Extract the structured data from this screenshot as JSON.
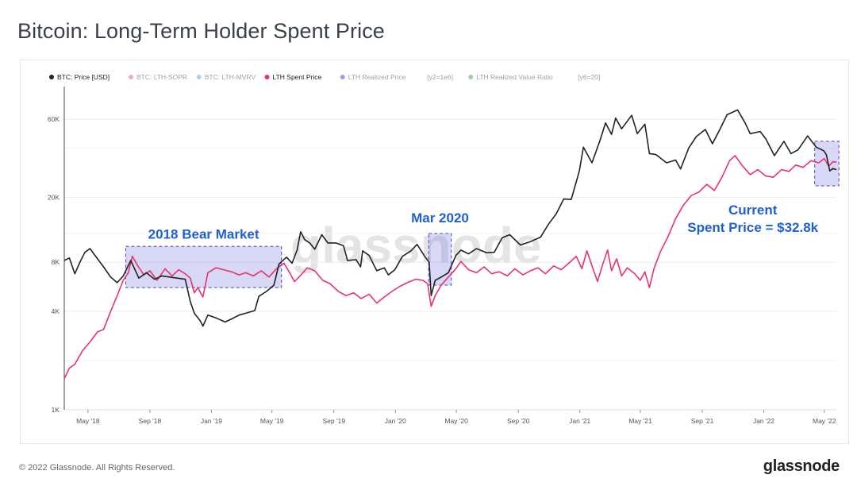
{
  "title": "Bitcoin: Long-Term Holder Spent Price",
  "footer": "© 2022 Glassnode. All Rights Reserved.",
  "brand": "glassnode",
  "watermark": "glassnode",
  "legend": [
    {
      "label": "BTC: Price [USD]",
      "color": "#222222",
      "active": true
    },
    {
      "label": "BTC: LTH-SOPR",
      "color": "#e6417c",
      "active": false
    },
    {
      "label": "BTC: LTH-MVRV",
      "color": "#3ea0e0",
      "active": false
    },
    {
      "label": "LTH Spent Price",
      "color": "#e8336f",
      "active": true
    },
    {
      "label": "LTH Realized Price",
      "color": "#1d2bd0",
      "active": false
    },
    {
      "label": "[y2=1e6]",
      "color": null,
      "active": false
    },
    {
      "label": "LTH Realized Value Ratio",
      "color": "#2e9e3a",
      "active": false
    },
    {
      "label": "[y6=20]",
      "color": null,
      "active": false
    }
  ],
  "chart_data": {
    "type": "line",
    "title": "Bitcoin: Long-Term Holder Spent Price",
    "y_scale": "log",
    "ylim": [
      1000,
      90000
    ],
    "y_ticks": [
      {
        "value": 1000,
        "label": "1K"
      },
      {
        "value": 4000,
        "label": "4K"
      },
      {
        "value": 8000,
        "label": "8K"
      },
      {
        "value": 20000,
        "label": "20K"
      },
      {
        "value": 60000,
        "label": "60K"
      }
    ],
    "x_range": [
      "2018-03-15",
      "2022-05-25"
    ],
    "x_ticks": [
      {
        "date": "2018-05-01",
        "label": "May '18"
      },
      {
        "date": "2018-09-01",
        "label": "Sep '18"
      },
      {
        "date": "2019-01-01",
        "label": "Jan '19"
      },
      {
        "date": "2019-05-01",
        "label": "May '19"
      },
      {
        "date": "2019-09-01",
        "label": "Sep '19"
      },
      {
        "date": "2020-01-01",
        "label": "Jan '20"
      },
      {
        "date": "2020-05-01",
        "label": "May '20"
      },
      {
        "date": "2020-09-01",
        "label": "Sep '20"
      },
      {
        "date": "2021-01-01",
        "label": "Jan '21"
      },
      {
        "date": "2021-05-01",
        "label": "May '21"
      },
      {
        "date": "2021-09-01",
        "label": "Sep '21"
      },
      {
        "date": "2022-01-01",
        "label": "Jan '22"
      },
      {
        "date": "2022-05-01",
        "label": "May '22"
      }
    ],
    "series": [
      {
        "name": "BTC: Price [USD]",
        "color": "#222222",
        "points": [
          [
            "2018-03-15",
            8200
          ],
          [
            "2018-03-25",
            8500
          ],
          [
            "2018-04-05",
            6800
          ],
          [
            "2018-04-15",
            8000
          ],
          [
            "2018-04-25",
            9200
          ],
          [
            "2018-05-05",
            9700
          ],
          [
            "2018-05-20",
            8400
          ],
          [
            "2018-06-01",
            7500
          ],
          [
            "2018-06-15",
            6500
          ],
          [
            "2018-06-28",
            6000
          ],
          [
            "2018-07-10",
            6600
          ],
          [
            "2018-07-25",
            8200
          ],
          [
            "2018-08-10",
            6400
          ],
          [
            "2018-08-25",
            6900
          ],
          [
            "2018-09-10",
            6300
          ],
          [
            "2018-09-25",
            6600
          ],
          [
            "2018-10-10",
            6500
          ],
          [
            "2018-10-25",
            6400
          ],
          [
            "2018-11-10",
            6300
          ],
          [
            "2018-11-20",
            4600
          ],
          [
            "2018-11-28",
            3900
          ],
          [
            "2018-12-10",
            3500
          ],
          [
            "2018-12-15",
            3250
          ],
          [
            "2018-12-25",
            3800
          ],
          [
            "2019-01-10",
            3650
          ],
          [
            "2019-01-28",
            3450
          ],
          [
            "2019-02-10",
            3600
          ],
          [
            "2019-02-25",
            3800
          ],
          [
            "2019-03-10",
            3900
          ],
          [
            "2019-03-28",
            4050
          ],
          [
            "2019-04-05",
            4950
          ],
          [
            "2019-04-20",
            5300
          ],
          [
            "2019-05-05",
            5800
          ],
          [
            "2019-05-15",
            7800
          ],
          [
            "2019-05-30",
            8600
          ],
          [
            "2019-06-10",
            7900
          ],
          [
            "2019-06-20",
            9500
          ],
          [
            "2019-06-27",
            12300
          ],
          [
            "2019-07-05",
            11000
          ],
          [
            "2019-07-15",
            10500
          ],
          [
            "2019-07-25",
            9600
          ],
          [
            "2019-08-08",
            11800
          ],
          [
            "2019-08-20",
            10500
          ],
          [
            "2019-09-05",
            10500
          ],
          [
            "2019-09-20",
            10100
          ],
          [
            "2019-09-28",
            8200
          ],
          [
            "2019-10-15",
            8300
          ],
          [
            "2019-10-24",
            7500
          ],
          [
            "2019-10-28",
            9400
          ],
          [
            "2019-11-10",
            8800
          ],
          [
            "2019-11-25",
            7100
          ],
          [
            "2019-12-10",
            7400
          ],
          [
            "2019-12-18",
            6700
          ],
          [
            "2019-12-31",
            7200
          ],
          [
            "2020-01-15",
            8700
          ],
          [
            "2020-02-01",
            9400
          ],
          [
            "2020-02-13",
            10300
          ],
          [
            "2020-02-28",
            8700
          ],
          [
            "2020-03-08",
            8000
          ],
          [
            "2020-03-12",
            5000
          ],
          [
            "2020-03-20",
            6200
          ],
          [
            "2020-04-01",
            6500
          ],
          [
            "2020-04-15",
            6900
          ],
          [
            "2020-04-30",
            8800
          ],
          [
            "2020-05-10",
            9500
          ],
          [
            "2020-05-25",
            9000
          ],
          [
            "2020-06-10",
            9700
          ],
          [
            "2020-06-30",
            9150
          ],
          [
            "2020-07-15",
            9200
          ],
          [
            "2020-07-31",
            11300
          ],
          [
            "2020-08-15",
            11800
          ],
          [
            "2020-09-05",
            10200
          ],
          [
            "2020-09-25",
            10700
          ],
          [
            "2020-10-15",
            11400
          ],
          [
            "2020-10-31",
            13700
          ],
          [
            "2020-11-15",
            15800
          ],
          [
            "2020-11-30",
            19500
          ],
          [
            "2020-12-15",
            19400
          ],
          [
            "2020-12-31",
            29000
          ],
          [
            "2021-01-08",
            40500
          ],
          [
            "2021-01-25",
            32500
          ],
          [
            "2021-02-10",
            44500
          ],
          [
            "2021-02-21",
            57000
          ],
          [
            "2021-03-05",
            48500
          ],
          [
            "2021-03-13",
            61000
          ],
          [
            "2021-03-25",
            52500
          ],
          [
            "2021-04-14",
            63500
          ],
          [
            "2021-04-25",
            49000
          ],
          [
            "2021-05-10",
            56000
          ],
          [
            "2021-05-19",
            37000
          ],
          [
            "2021-06-01",
            36500
          ],
          [
            "2021-06-22",
            32500
          ],
          [
            "2021-07-10",
            33800
          ],
          [
            "2021-07-20",
            29800
          ],
          [
            "2021-08-05",
            40000
          ],
          [
            "2021-08-20",
            47000
          ],
          [
            "2021-09-07",
            52000
          ],
          [
            "2021-09-21",
            42500
          ],
          [
            "2021-10-05",
            51500
          ],
          [
            "2021-10-20",
            64000
          ],
          [
            "2021-11-10",
            68500
          ],
          [
            "2021-11-25",
            57000
          ],
          [
            "2021-12-05",
            49000
          ],
          [
            "2021-12-25",
            50500
          ],
          [
            "2022-01-05",
            45500
          ],
          [
            "2022-01-22",
            36000
          ],
          [
            "2022-02-10",
            44000
          ],
          [
            "2022-02-24",
            37000
          ],
          [
            "2022-03-10",
            39000
          ],
          [
            "2022-03-29",
            47500
          ],
          [
            "2022-04-15",
            40500
          ],
          [
            "2022-04-30",
            38500
          ],
          [
            "2022-05-05",
            36500
          ],
          [
            "2022-05-12",
            29000
          ],
          [
            "2022-05-18",
            30000
          ],
          [
            "2022-05-25",
            29500
          ]
        ]
      },
      {
        "name": "LTH Spent Price",
        "color": "#e8336f",
        "points": [
          [
            "2018-03-15",
            1550
          ],
          [
            "2018-03-25",
            1800
          ],
          [
            "2018-04-05",
            1900
          ],
          [
            "2018-04-20",
            2300
          ],
          [
            "2018-05-05",
            2600
          ],
          [
            "2018-05-20",
            3000
          ],
          [
            "2018-06-01",
            3100
          ],
          [
            "2018-06-15",
            4000
          ],
          [
            "2018-06-28",
            5000
          ],
          [
            "2018-07-10",
            6200
          ],
          [
            "2018-07-20",
            6900
          ],
          [
            "2018-07-28",
            8700
          ],
          [
            "2018-08-08",
            7600
          ],
          [
            "2018-08-20",
            6700
          ],
          [
            "2018-09-01",
            7100
          ],
          [
            "2018-09-15",
            6200
          ],
          [
            "2018-10-01",
            7300
          ],
          [
            "2018-10-15",
            6600
          ],
          [
            "2018-10-28",
            7200
          ],
          [
            "2018-11-10",
            6800
          ],
          [
            "2018-11-20",
            6400
          ],
          [
            "2018-11-28",
            5200
          ],
          [
            "2018-12-05",
            5600
          ],
          [
            "2018-12-15",
            4900
          ],
          [
            "2018-12-25",
            6900
          ],
          [
            "2019-01-10",
            7400
          ],
          [
            "2019-01-25",
            7200
          ],
          [
            "2019-02-10",
            7000
          ],
          [
            "2019-02-25",
            6700
          ],
          [
            "2019-03-10",
            6900
          ],
          [
            "2019-03-25",
            6600
          ],
          [
            "2019-04-10",
            7100
          ],
          [
            "2019-04-25",
            6500
          ],
          [
            "2019-05-10",
            7300
          ],
          [
            "2019-05-25",
            7900
          ],
          [
            "2019-06-05",
            6900
          ],
          [
            "2019-06-15",
            6100
          ],
          [
            "2019-06-28",
            6700
          ],
          [
            "2019-07-10",
            7400
          ],
          [
            "2019-07-25",
            7100
          ],
          [
            "2019-08-10",
            6200
          ],
          [
            "2019-08-25",
            5900
          ],
          [
            "2019-09-10",
            5300
          ],
          [
            "2019-09-25",
            5000
          ],
          [
            "2019-10-10",
            5200
          ],
          [
            "2019-10-25",
            4800
          ],
          [
            "2019-11-10",
            5100
          ],
          [
            "2019-11-25",
            4500
          ],
          [
            "2019-12-10",
            4900
          ],
          [
            "2019-12-25",
            5300
          ],
          [
            "2020-01-10",
            5700
          ],
          [
            "2020-01-25",
            6000
          ],
          [
            "2020-02-10",
            6300
          ],
          [
            "2020-02-25",
            6200
          ],
          [
            "2020-03-05",
            5900
          ],
          [
            "2020-03-12",
            4300
          ],
          [
            "2020-03-20",
            5000
          ],
          [
            "2020-04-01",
            5800
          ],
          [
            "2020-04-15",
            6500
          ],
          [
            "2020-04-30",
            7300
          ],
          [
            "2020-05-10",
            8100
          ],
          [
            "2020-05-25",
            7200
          ],
          [
            "2020-06-10",
            6900
          ],
          [
            "2020-06-25",
            7500
          ],
          [
            "2020-07-10",
            6800
          ],
          [
            "2020-07-25",
            7000
          ],
          [
            "2020-08-10",
            6600
          ],
          [
            "2020-08-25",
            7300
          ],
          [
            "2020-09-10",
            6700
          ],
          [
            "2020-09-25",
            7100
          ],
          [
            "2020-10-10",
            7400
          ],
          [
            "2020-10-25",
            6800
          ],
          [
            "2020-11-10",
            7600
          ],
          [
            "2020-11-25",
            7200
          ],
          [
            "2020-12-10",
            7900
          ],
          [
            "2020-12-25",
            8700
          ],
          [
            "2021-01-05",
            7300
          ],
          [
            "2021-01-15",
            9400
          ],
          [
            "2021-01-25",
            7600
          ],
          [
            "2021-02-05",
            6100
          ],
          [
            "2021-02-15",
            7700
          ],
          [
            "2021-02-25",
            9500
          ],
          [
            "2021-03-05",
            7100
          ],
          [
            "2021-03-15",
            8400
          ],
          [
            "2021-03-25",
            6600
          ],
          [
            "2021-04-05",
            7400
          ],
          [
            "2021-04-20",
            6800
          ],
          [
            "2021-05-01",
            6200
          ],
          [
            "2021-05-10",
            7000
          ],
          [
            "2021-05-19",
            5600
          ],
          [
            "2021-05-28",
            7300
          ],
          [
            "2021-06-10",
            9300
          ],
          [
            "2021-06-25",
            11500
          ],
          [
            "2021-07-10",
            14800
          ],
          [
            "2021-07-25",
            17800
          ],
          [
            "2021-08-10",
            20500
          ],
          [
            "2021-08-25",
            21500
          ],
          [
            "2021-09-10",
            24000
          ],
          [
            "2021-09-25",
            22000
          ],
          [
            "2021-10-10",
            26500
          ],
          [
            "2021-10-25",
            33500
          ],
          [
            "2021-11-05",
            36000
          ],
          [
            "2021-11-20",
            31000
          ],
          [
            "2021-12-05",
            27500
          ],
          [
            "2021-12-20",
            29500
          ],
          [
            "2022-01-05",
            27000
          ],
          [
            "2022-01-20",
            26500
          ],
          [
            "2022-02-05",
            29500
          ],
          [
            "2022-02-20",
            28800
          ],
          [
            "2022-03-05",
            31500
          ],
          [
            "2022-03-20",
            30500
          ],
          [
            "2022-04-05",
            33500
          ],
          [
            "2022-04-20",
            32500
          ],
          [
            "2022-05-01",
            34500
          ],
          [
            "2022-05-10",
            31000
          ],
          [
            "2022-05-18",
            33000
          ],
          [
            "2022-05-25",
            32800
          ]
        ]
      }
    ],
    "highlights": [
      {
        "label": "2018 Bear Market",
        "x": [
          "2018-07-15",
          "2019-05-20"
        ],
        "y": [
          5600,
          10000
        ]
      },
      {
        "label": "Mar 2020",
        "x": [
          "2020-03-07",
          "2020-04-21"
        ],
        "y": [
          5800,
          12000
        ]
      },
      {
        "label": "Current\nSpent Price = $32.8k",
        "x": [
          "2022-04-12",
          "2022-05-30"
        ],
        "y": [
          23500,
          44000
        ]
      }
    ],
    "highlight_color": "#6f6fe0"
  }
}
